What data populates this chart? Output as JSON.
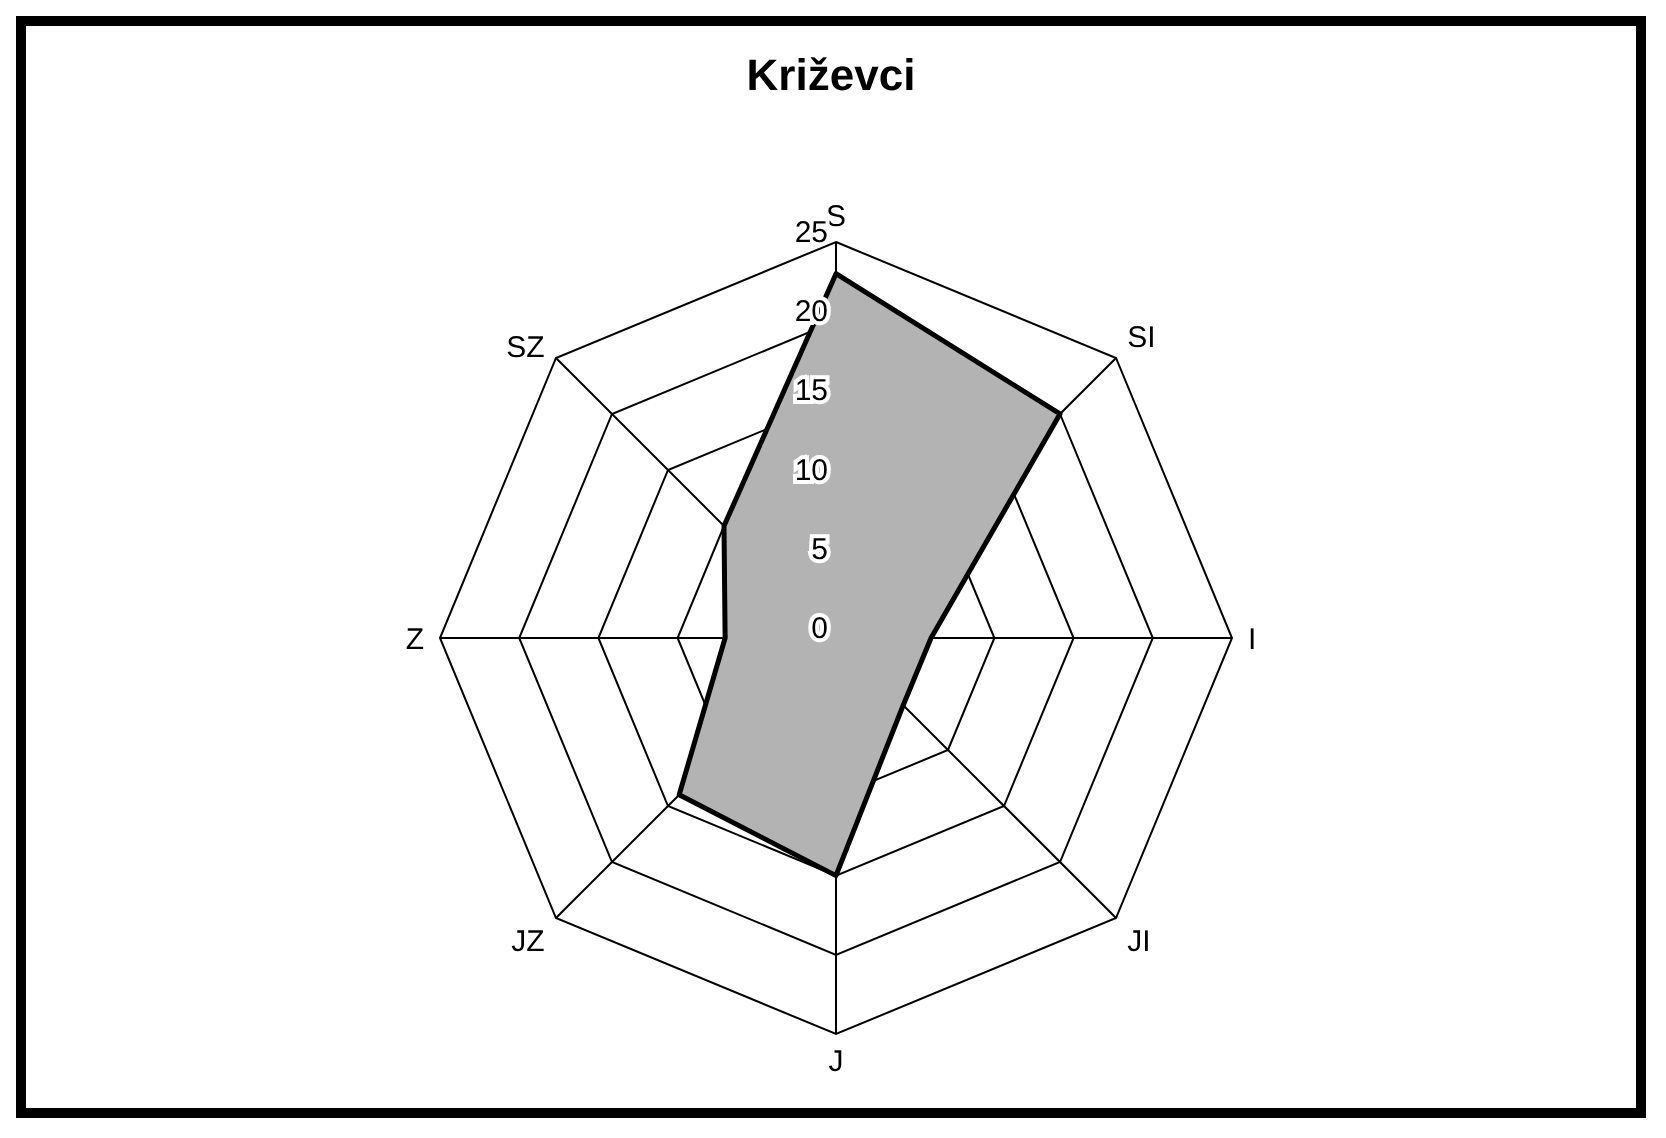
{
  "chart_data": {
    "type": "radar",
    "title": "Križevci",
    "categories": [
      "S",
      "SI",
      "I",
      "JI",
      "J",
      "JZ",
      "Z",
      "SZ"
    ],
    "series": [
      {
        "color": "#b3b3b3",
        "values": [
          23,
          20,
          6,
          6,
          15,
          14,
          7,
          10
        ]
      }
    ],
    "ylim": [
      0,
      25
    ],
    "yticks": [
      0,
      5,
      10,
      15,
      20,
      25
    ],
    "grid": true,
    "marker": "none",
    "line_style": "solid"
  }
}
